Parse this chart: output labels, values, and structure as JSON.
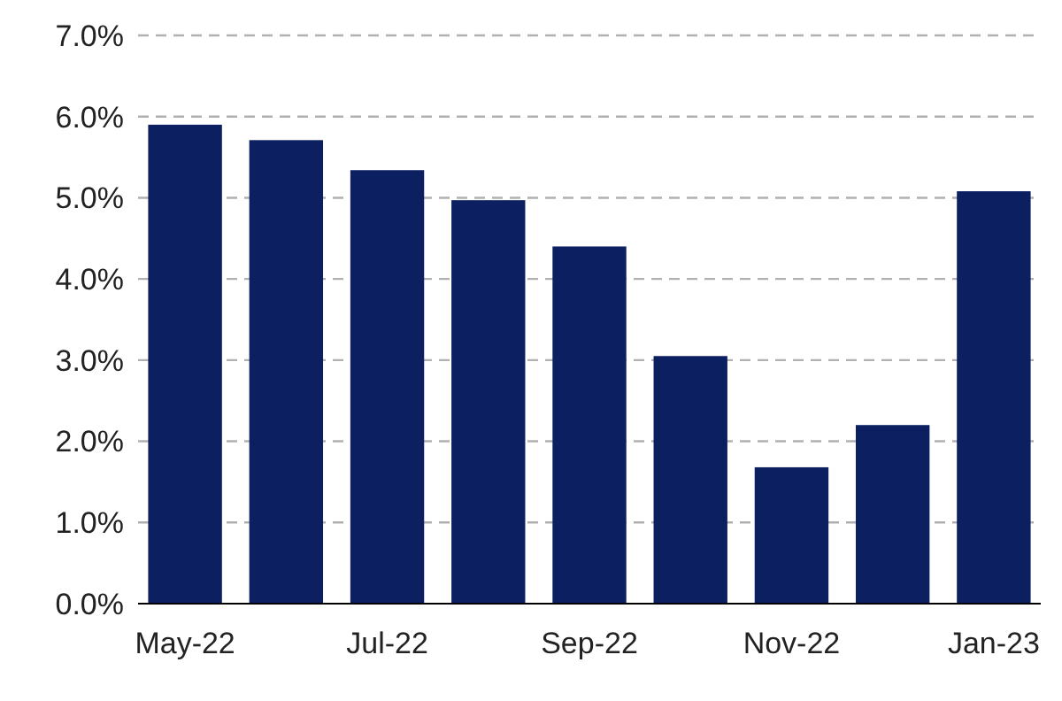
{
  "chart_data": {
    "type": "bar",
    "categories": [
      "May-22",
      null,
      "Jul-22",
      null,
      "Sep-22",
      null,
      "Nov-22",
      null,
      "Jan-23"
    ],
    "values": [
      5.9,
      5.71,
      5.34,
      4.97,
      4.4,
      3.05,
      1.68,
      2.2,
      5.08
    ],
    "color": "#0c2061",
    "ylim": [
      0,
      7
    ],
    "yticks": [
      {
        "value": 0,
        "label": "0.0%"
      },
      {
        "value": 1,
        "label": "1.0%"
      },
      {
        "value": 2,
        "label": "2.0%"
      },
      {
        "value": 3,
        "label": "3.0%"
      },
      {
        "value": 4,
        "label": "4.0%"
      },
      {
        "value": 5,
        "label": "5.0%"
      },
      {
        "value": 6,
        "label": "6.0%"
      },
      {
        "value": 7,
        "label": "7.0%"
      }
    ],
    "grid": "y"
  }
}
